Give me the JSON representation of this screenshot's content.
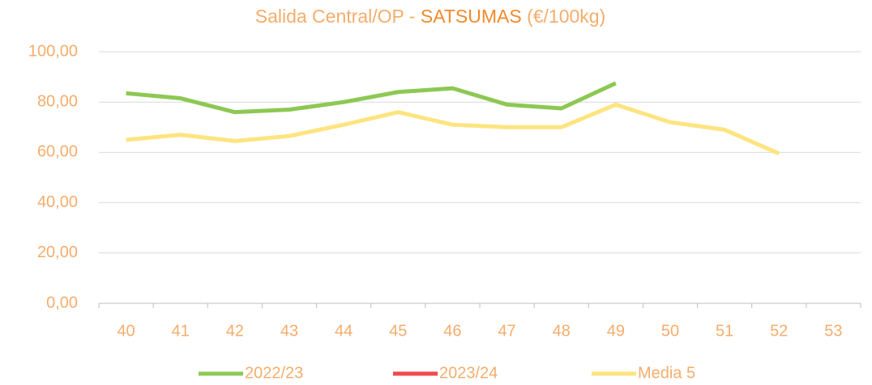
{
  "chart_data": {
    "type": "line",
    "title_parts": [
      "Salida Central/OP - ",
      "SATSUMAS",
      " (€/100kg)"
    ],
    "title_colors": [
      "#f5ad6c",
      "#f28a2a",
      "#f5ad6c"
    ],
    "categories": [
      "40",
      "41",
      "42",
      "43",
      "44",
      "45",
      "46",
      "47",
      "48",
      "49",
      "50",
      "51",
      "52",
      "53"
    ],
    "series": [
      {
        "name": "2022/23",
        "color": "#8dc853",
        "values": [
          83.5,
          81.5,
          76,
          77,
          80,
          84,
          85.5,
          79,
          77.5,
          87.5,
          null,
          null,
          null,
          null
        ]
      },
      {
        "name": "2023/24",
        "color": "#f04a4a",
        "values": [
          null,
          null,
          null,
          null,
          null,
          null,
          null,
          null,
          null,
          null,
          null,
          null,
          null,
          null
        ]
      },
      {
        "name": "Media 5",
        "color": "#fde47f",
        "values": [
          65,
          67,
          64.5,
          66.5,
          71,
          76,
          71,
          70,
          70,
          79,
          72,
          69,
          59.5,
          null
        ]
      }
    ],
    "ylim": [
      0,
      100
    ],
    "yticks": [
      {
        "value": 0,
        "label": "0,00"
      },
      {
        "value": 20,
        "label": "20,00"
      },
      {
        "value": 40,
        "label": "40,00"
      },
      {
        "value": 60,
        "label": "60,00"
      },
      {
        "value": 80,
        "label": "80,00"
      },
      {
        "value": 100,
        "label": "100,00"
      }
    ],
    "grid": true,
    "legend": "bottom"
  }
}
